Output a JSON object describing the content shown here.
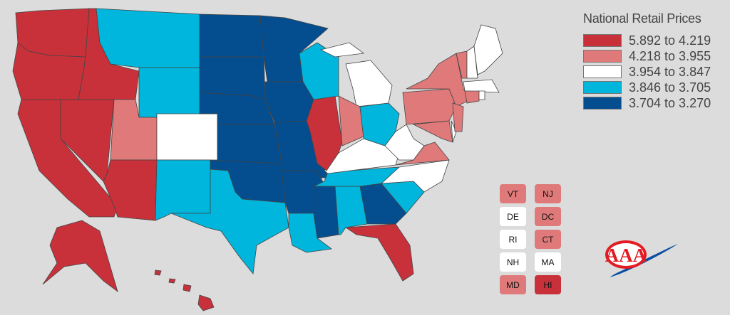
{
  "legend": {
    "title": "National Retail Prices",
    "bins": [
      {
        "label": "5.892 to 4.219",
        "color": "#c8313a"
      },
      {
        "label": "4.218 to 3.955",
        "color": "#e07a7a"
      },
      {
        "label": "3.954 to 3.847",
        "color": "#ffffff"
      },
      {
        "label": "3.846 to 3.705",
        "color": "#00b6dc"
      },
      {
        "label": "3.704 to 3.270",
        "color": "#044d8f"
      }
    ]
  },
  "states": {
    "WA": 0,
    "OR": 0,
    "CA": 0,
    "NV": 0,
    "ID": 0,
    "AZ": 0,
    "IL": 0,
    "FL": 0,
    "AK": 0,
    "HI": 0,
    "UT": 1,
    "IN": 1,
    "PA": 1,
    "NY": 1,
    "VA": 1,
    "MD": 1,
    "NJ": 1,
    "VT": 1,
    "CT": 1,
    "DC": 1,
    "CO": 2,
    "MI": 2,
    "KY": 2,
    "WV": 2,
    "NC": 2,
    "ME": 2,
    "NH": 2,
    "MA": 2,
    "RI": 2,
    "DE": 2,
    "MT": 3,
    "WY": 3,
    "NM": 3,
    "TX": 3,
    "WI": 3,
    "OH": 3,
    "TN": 3,
    "AL": 3,
    "LA": 3,
    "SC": 3,
    "ND": 4,
    "SD": 4,
    "NE": 4,
    "KS": 4,
    "OK": 4,
    "MN": 4,
    "IA": 4,
    "MO": 4,
    "AR": 4,
    "MS": 4,
    "GA": 4
  },
  "small_states": [
    "VT",
    "NJ",
    "DE",
    "DC",
    "RI",
    "CT",
    "NH",
    "MA",
    "MD",
    "HI"
  ],
  "logo": {
    "text": "AAA",
    "colors": {
      "red": "#e31b23",
      "blue": "#0a4ea1"
    }
  }
}
